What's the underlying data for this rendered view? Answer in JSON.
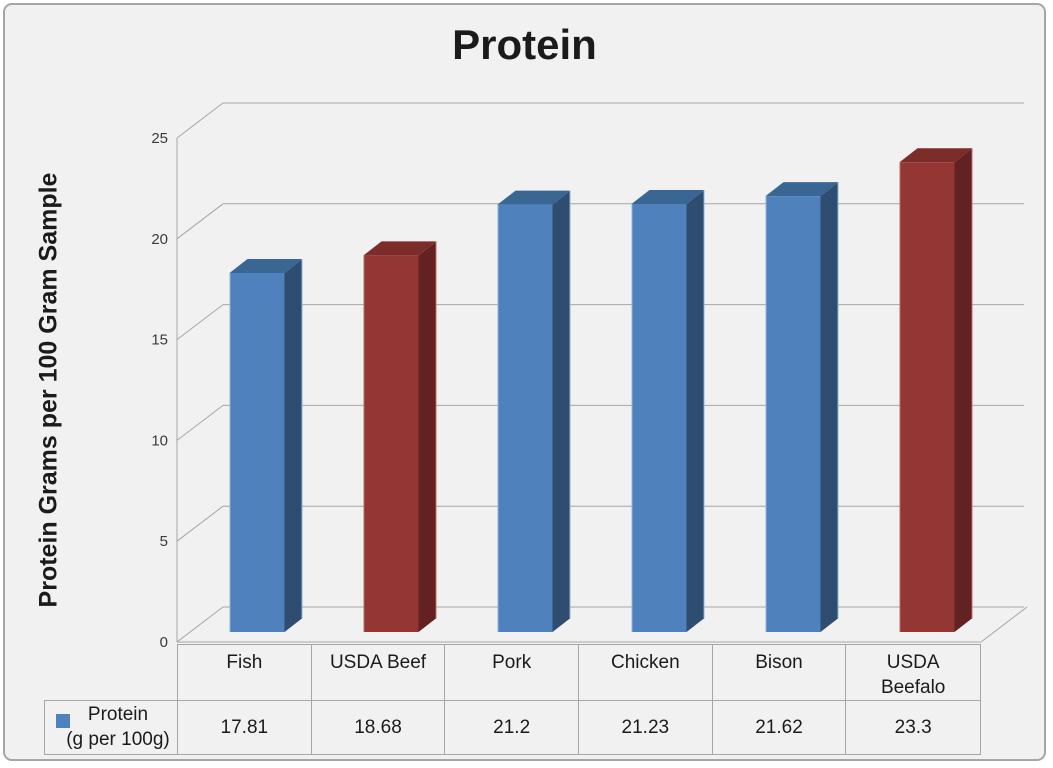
{
  "title": "Protein",
  "y_axis_label": "Protein Grams per 100 Gram Sample",
  "legend": {
    "label": "Protein (g per 100g)",
    "label_lines": [
      "Protein",
      "(g per 100g)"
    ],
    "marker_color": "#4f81bd"
  },
  "chart_data": {
    "type": "bar",
    "style": "3d",
    "title": "Protein",
    "ylabel": "Protein Grams per 100 Gram Sample",
    "series_name": "Protein (g per 100g)",
    "categories": [
      "Fish",
      "USDA Beef",
      "Pork",
      "Chicken",
      "Bison",
      "USDA Beefalo"
    ],
    "values": [
      17.81,
      18.68,
      21.2,
      21.23,
      21.62,
      23.3
    ],
    "value_labels": [
      "17.81",
      "18.68",
      "21.2",
      "21.23",
      "21.62",
      "23.3"
    ],
    "yticks": [
      0,
      5,
      10,
      15,
      20,
      25
    ],
    "ylim": [
      0,
      25
    ],
    "grid": true,
    "legend_position": "table-left",
    "bar_color_keys": [
      "blue",
      "red",
      "blue",
      "blue",
      "blue",
      "red"
    ],
    "palette": {
      "blue": {
        "front": "#4f81bd",
        "top": "#3a6693",
        "side": "#2e4d71",
        "edge": "#8fb2d9"
      },
      "red": {
        "front": "#943734",
        "top": "#7c2c29",
        "side": "#632221",
        "edge": "#b96a67"
      }
    },
    "grid_color": "#a6a6a6",
    "text_color": "#3a3a3a",
    "background_color": "#f2f1f1"
  }
}
